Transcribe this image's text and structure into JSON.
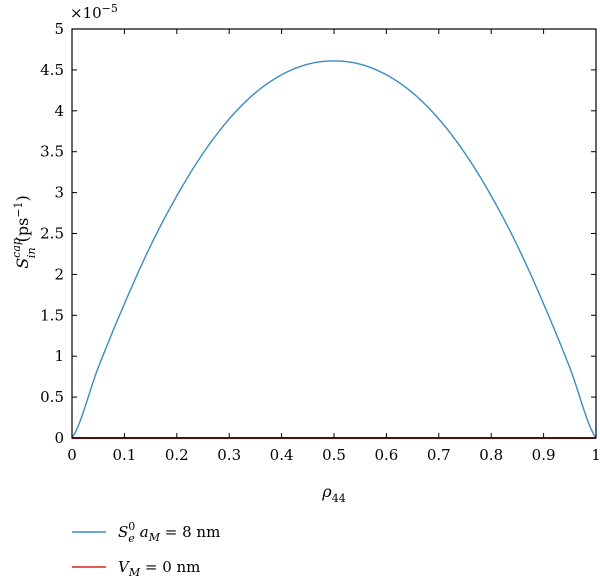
{
  "chart_data": {
    "type": "line",
    "title": "",
    "xlabel": {
      "base": "ρ",
      "sub": "44"
    },
    "ylabel": {
      "base": "S",
      "sub": "in",
      "sup": "cap",
      "unit_open": " (ps",
      "unit_sup": "−1",
      "unit_close": ")"
    },
    "y_multiplier": {
      "base": "×10",
      "exp": "−5"
    },
    "xlim": [
      0,
      1
    ],
    "ylim": [
      0,
      5
    ],
    "xticks": [
      "0",
      "0.1",
      "0.2",
      "0.3",
      "0.4",
      "0.5",
      "0.6",
      "0.7",
      "0.8",
      "0.9",
      "1"
    ],
    "yticks": [
      "0",
      "0.5",
      "1",
      "1.5",
      "2",
      "2.5",
      "3",
      "3.5",
      "4",
      "4.5",
      "5"
    ],
    "grid": false,
    "legend_position": "bottom-left",
    "series": [
      {
        "label": {
          "main": "S",
          "sub": "e",
          "sup": "0",
          "rest_var": "a",
          "rest_sub": "M",
          "rest_eq": " = 8 nm"
        },
        "color": "#3b8bc2",
        "x": [
          0,
          0.05,
          0.1,
          0.15,
          0.2,
          0.25,
          0.3,
          0.35,
          0.4,
          0.45,
          0.5,
          0.55,
          0.6,
          0.65,
          0.7,
          0.75,
          0.8,
          0.85,
          0.9,
          0.95,
          1
        ],
        "y": [
          0,
          0.86,
          1.64,
          2.35,
          2.96,
          3.48,
          3.9,
          4.22,
          4.44,
          4.57,
          4.61,
          4.57,
          4.44,
          4.22,
          3.9,
          3.48,
          2.96,
          2.35,
          1.64,
          0.86,
          0
        ]
      },
      {
        "label": {
          "main": "V",
          "sub": "M",
          "rest_eq": " = 0 nm"
        },
        "color": "#e0201b",
        "x": [
          0,
          1
        ],
        "y": [
          0,
          0
        ]
      }
    ]
  }
}
